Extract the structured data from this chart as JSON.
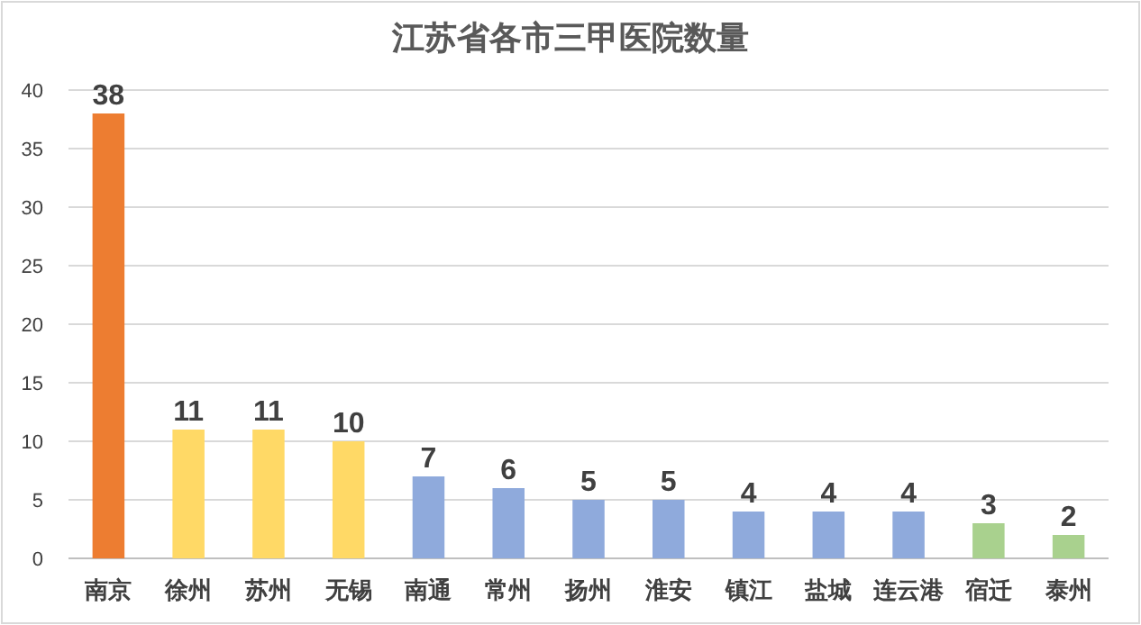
{
  "chart_data": {
    "type": "bar",
    "title": "江苏省各市三甲医院数量",
    "categories": [
      "南京",
      "徐州",
      "苏州",
      "无锡",
      "南通",
      "常州",
      "扬州",
      "淮安",
      "镇江",
      "盐城",
      "连云港",
      "宿迁",
      "泰州"
    ],
    "values": [
      38,
      11,
      11,
      10,
      7,
      6,
      5,
      5,
      4,
      4,
      4,
      3,
      2
    ],
    "colors": [
      "#ed7d31",
      "#ffd966",
      "#ffd966",
      "#ffd966",
      "#8faadc",
      "#8faadc",
      "#8faadc",
      "#8faadc",
      "#8faadc",
      "#8faadc",
      "#8faadc",
      "#a9d18e",
      "#a9d18e"
    ],
    "ylim": [
      0,
      40
    ],
    "yticks": [
      0,
      5,
      10,
      15,
      20,
      25,
      30,
      35,
      40
    ],
    "grid": "y",
    "data_labels": true
  }
}
